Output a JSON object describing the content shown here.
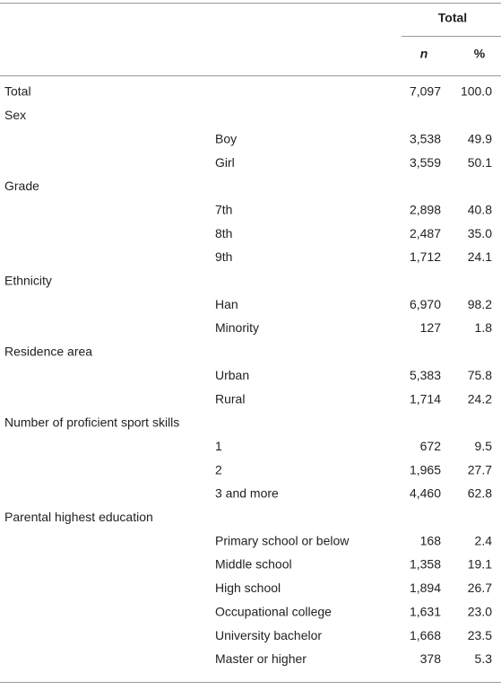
{
  "table": {
    "header": {
      "group": "Total",
      "columns": [
        "n",
        "%"
      ]
    },
    "rows": [
      {
        "group": "Total",
        "n": "7,097",
        "pct": "100.0"
      },
      {
        "group": "Sex"
      },
      {
        "item": "Boy",
        "n": "3,538",
        "pct": "49.9"
      },
      {
        "item": "Girl",
        "n": "3,559",
        "pct": "50.1"
      },
      {
        "group": "Grade"
      },
      {
        "item": "7th",
        "n": "2,898",
        "pct": "40.8"
      },
      {
        "item": "8th",
        "n": "2,487",
        "pct": "35.0"
      },
      {
        "item": "9th",
        "n": "1,712",
        "pct": "24.1"
      },
      {
        "group": "Ethnicity"
      },
      {
        "item": "Han",
        "n": "6,970",
        "pct": "98.2"
      },
      {
        "item": "Minority",
        "n": "127",
        "pct": "1.8"
      },
      {
        "group": "Residence area"
      },
      {
        "item": "Urban",
        "n": "5,383",
        "pct": "75.8"
      },
      {
        "item": "Rural",
        "n": "1,714",
        "pct": "24.2"
      },
      {
        "group": "Number of proficient sport skills"
      },
      {
        "item": "1",
        "n": "672",
        "pct": "9.5"
      },
      {
        "item": "2",
        "n": "1,965",
        "pct": "27.7"
      },
      {
        "item": "3 and more",
        "n": "4,460",
        "pct": "62.8"
      },
      {
        "group": "Parental highest education"
      },
      {
        "item": "Primary school or below",
        "n": "168",
        "pct": "2.4"
      },
      {
        "item": "Middle school",
        "n": "1,358",
        "pct": "19.1"
      },
      {
        "item": "High school",
        "n": "1,894",
        "pct": "26.7"
      },
      {
        "item": "Occupational college",
        "n": "1,631",
        "pct": "23.0"
      },
      {
        "item": "University bachelor",
        "n": "1,668",
        "pct": "23.5"
      },
      {
        "item": "Master or higher",
        "n": "378",
        "pct": "5.3"
      }
    ]
  }
}
